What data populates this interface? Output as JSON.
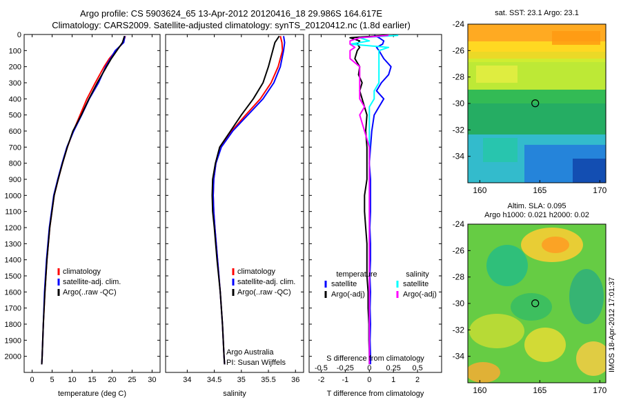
{
  "titles": {
    "line1": "Argo profile: CS 5903624_65 13-Apr-2012 20120416_18 29.986S 164.617E",
    "line2": "Climatology: CARS2009. Satellite-adjusted climatology: synTS_20120412.nc (1.8d earlier)"
  },
  "maps": {
    "sst_title": "sat. SST: 23.1  Argo: 23.1",
    "sla_title1": "Altim. SLA: 0.095",
    "sla_title2": "Argo h1000: 0.021 h2000: 0.02",
    "xticks": [
      160,
      165,
      170
    ],
    "xlim": [
      159,
      170.5
    ],
    "yticks": [
      -24,
      -26,
      -28,
      -30,
      -32,
      -34
    ],
    "ylim": [
      -36,
      -24
    ],
    "argo_position": {
      "lon": 164.617,
      "lat": -29.986
    }
  },
  "side_label": "IMOS 18-Apr-2012 17:01:37",
  "colors": {
    "climatology": "#ff0000",
    "satellite": "#0000ff",
    "argo": "#000000",
    "satellite_s": "#00ffff",
    "argo_s": "#ff00ff"
  },
  "chart_data": [
    {
      "type": "line",
      "xlabel": "temperature (deg C)",
      "xticks": [
        0,
        5,
        10,
        15,
        20,
        25,
        30
      ],
      "xlim": [
        -2,
        32
      ],
      "ylim": [
        2100,
        0
      ],
      "yticks": [
        0,
        100,
        200,
        300,
        400,
        500,
        600,
        700,
        800,
        900,
        1000,
        1100,
        1200,
        1300,
        1400,
        1500,
        1600,
        1700,
        1800,
        1900,
        2000
      ],
      "legend": [
        "climatology",
        "satellite-adj. clim.",
        "Argo(..raw -QC)"
      ],
      "depth": [
        10,
        50,
        100,
        150,
        200,
        300,
        400,
        500,
        600,
        700,
        800,
        900,
        1000,
        1200,
        1400,
        1600,
        1800,
        2000,
        2050
      ],
      "series": [
        {
          "name": "climatology",
          "values": [
            23.3,
            22.8,
            21.0,
            19.3,
            18.0,
            15.8,
            13.7,
            12.0,
            10.3,
            8.8,
            7.6,
            6.5,
            5.5,
            4.4,
            3.7,
            3.2,
            2.8,
            2.5,
            2.4
          ]
        },
        {
          "name": "satellite-adj. clim.",
          "values": [
            23.2,
            22.9,
            20.8,
            19.6,
            18.4,
            16.6,
            14.3,
            12.4,
            10.4,
            8.7,
            7.5,
            6.4,
            5.4,
            4.3,
            3.6,
            3.1,
            2.8,
            2.5,
            2.4
          ]
        },
        {
          "name": "Argo(..raw -QC)",
          "values": [
            23.1,
            22.6,
            21.2,
            19.8,
            18.6,
            16.3,
            14.2,
            12.3,
            10.2,
            8.8,
            7.6,
            6.5,
            5.5,
            4.4,
            3.7,
            3.2,
            2.8,
            2.5,
            2.4
          ]
        }
      ]
    },
    {
      "type": "line",
      "xlabel": "salinity",
      "xticks": [
        34,
        34.5,
        35,
        35.5,
        36
      ],
      "xlim": [
        33.6,
        36.15
      ],
      "ylim": [
        2100,
        0
      ],
      "legend": [
        "climatology",
        "satellite-adj. clim.",
        "Argo(..raw -QC)"
      ],
      "annotation": [
        "Argo Australia",
        "PI: Susan Wijffels"
      ],
      "depth": [
        10,
        50,
        100,
        200,
        300,
        400,
        500,
        600,
        700,
        800,
        900,
        1000,
        1100,
        1200,
        1400,
        1600,
        1800,
        2000,
        2050
      ],
      "series": [
        {
          "name": "climatology",
          "values": [
            35.72,
            35.75,
            35.76,
            35.68,
            35.55,
            35.35,
            35.08,
            34.82,
            34.62,
            34.53,
            34.49,
            34.48,
            34.49,
            34.51,
            34.56,
            34.61,
            34.65,
            34.68,
            34.69
          ]
        },
        {
          "name": "satellite-adj. clim.",
          "values": [
            35.78,
            35.8,
            35.78,
            35.72,
            35.6,
            35.4,
            35.12,
            34.84,
            34.63,
            34.53,
            34.49,
            34.48,
            34.49,
            34.51,
            34.56,
            34.61,
            34.65,
            34.68,
            34.69
          ]
        },
        {
          "name": "Argo(..raw -QC)",
          "values": [
            35.7,
            35.62,
            35.58,
            35.5,
            35.4,
            35.22,
            35.0,
            34.8,
            34.6,
            34.52,
            34.47,
            34.46,
            34.47,
            34.5,
            34.55,
            34.61,
            34.65,
            34.68,
            34.69
          ]
        }
      ]
    },
    {
      "type": "line",
      "xlabel": "T difference from climatology",
      "xlabel_top": "S difference from climatology",
      "xticks": [
        -2,
        -1,
        0,
        1,
        2
      ],
      "xtick_labels": [
        "-2",
        "-1",
        "0",
        "1",
        "2"
      ],
      "xticks_s": [
        -0.5,
        -0.25,
        0,
        0.25,
        0.5
      ],
      "xtick_labels_s": [
        "-0.5",
        "-0.25",
        "0",
        "0.25",
        "0.5"
      ],
      "xlim": [
        -2.5,
        3
      ],
      "ylim": [
        2100,
        0
      ],
      "legend_titles": [
        "temperature",
        "salinity"
      ],
      "legend": [
        "satellite",
        "Argo(-adj)",
        "satellite",
        "Argo(-adj)"
      ],
      "depth": [
        5,
        20,
        40,
        60,
        80,
        100,
        150,
        200,
        250,
        300,
        350,
        400,
        450,
        500,
        600,
        700,
        800,
        900,
        1000,
        1100,
        1200,
        1300,
        1400,
        1500,
        1600,
        1700,
        1800,
        1900,
        2000,
        2050
      ],
      "series": [
        {
          "name": "temperature satellite",
          "values": [
            0.2,
            0.4,
            0.6,
            0.55,
            0.3,
            0.4,
            0.6,
            0.9,
            0.8,
            0.5,
            0.3,
            0.6,
            0.4,
            0.2,
            0.1,
            0.05,
            0.0,
            0.05,
            0.05,
            0.05,
            0.02,
            0.05,
            0.05,
            0.02,
            0.05,
            0.03,
            0.05,
            0.03,
            0.05,
            0.05
          ]
        },
        {
          "name": "temperature Argo(-adj)",
          "values": [
            0.7,
            -0.8,
            -0.4,
            -0.5,
            -0.4,
            -0.5,
            -0.6,
            -0.4,
            -0.45,
            -0.3,
            -0.4,
            -0.3,
            -0.2,
            -0.1,
            -0.15,
            -0.1,
            -0.1,
            -0.1,
            -0.2,
            -0.2,
            -0.15,
            -0.1,
            -0.1,
            -0.1,
            -0.05,
            -0.05,
            -0.02,
            -0.02,
            0.0,
            0.0
          ]
        },
        {
          "name": "salinity satellite",
          "values": [
            0.3,
            -0.1,
            0.0,
            -0.2,
            0.2,
            0.1,
            0.1,
            0.1,
            0.1,
            0.1,
            0.05,
            0.05,
            0.0,
            0.0,
            0.0,
            0.0,
            0.0,
            0.0,
            0.0,
            0.0,
            0.0,
            0.0,
            0.0,
            0.0,
            0.0,
            0.0,
            0.0,
            0.0,
            0.0,
            0.0
          ]
        },
        {
          "name": "salinity Argo(-adj)",
          "values": [
            0.2,
            -0.1,
            -0.2,
            -0.2,
            -0.15,
            -0.2,
            -0.2,
            -0.1,
            -0.1,
            -0.1,
            -0.1,
            -0.1,
            -0.05,
            -0.1,
            -0.05,
            0.0,
            0.0,
            0.0,
            0.0,
            0.0,
            0.0,
            0.0,
            0.0,
            0.0,
            0.0,
            0.0,
            0.0,
            0.0,
            0.0,
            0.0
          ]
        }
      ]
    }
  ]
}
